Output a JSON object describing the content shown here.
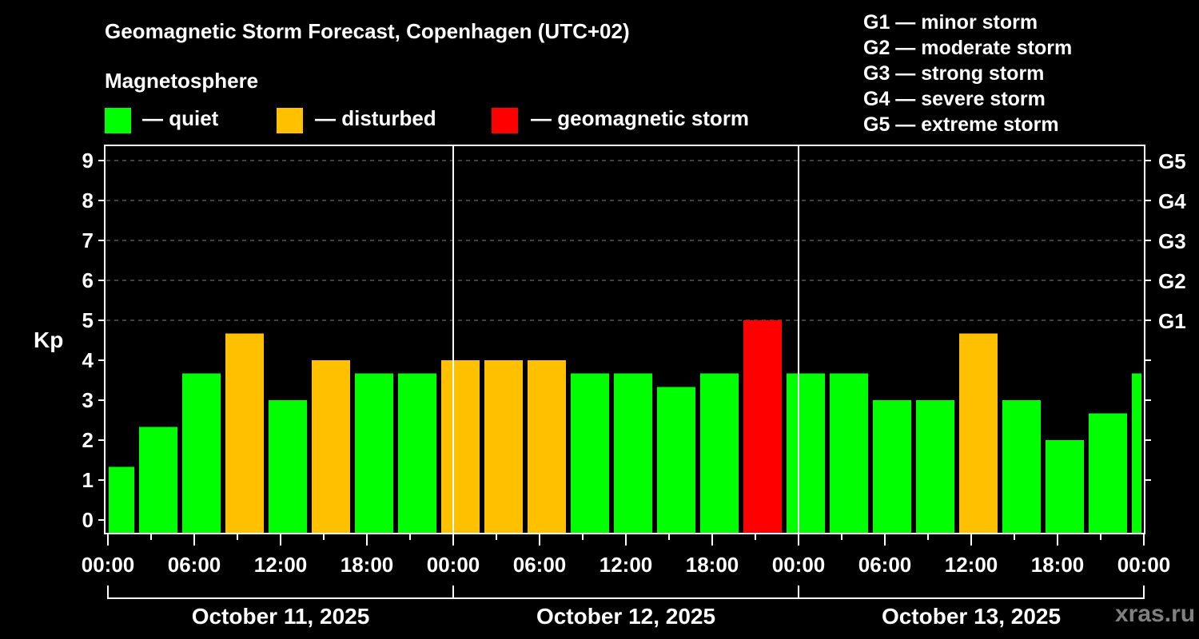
{
  "title": "Geomagnetic Storm Forecast, Copenhagen (UTC+02)",
  "magnetosphere_label": "Magnetosphere",
  "legend": [
    {
      "label": "— quiet",
      "color": "#00ff00"
    },
    {
      "label": "— disturbed",
      "color": "#ffc000"
    },
    {
      "label": "— geomagnetic storm",
      "color": "#ff0000"
    }
  ],
  "storm_scale": [
    "G1 — minor storm",
    "G2 — moderate storm",
    "G3 — strong storm",
    "G4 — severe storm",
    "G5 — extreme storm"
  ],
  "watermark": "xras.ru",
  "chart_data": {
    "type": "bar",
    "title": "Geomagnetic Storm Forecast, Copenhagen (UTC+02)",
    "ylabel": "Kp",
    "ylim": [
      0,
      9
    ],
    "yticks": [
      "0",
      "1",
      "2",
      "3",
      "4",
      "5",
      "6",
      "7",
      "8",
      "9"
    ],
    "right_ticks": [
      {
        "kp": 5,
        "label": "G1"
      },
      {
        "kp": 6,
        "label": "G2"
      },
      {
        "kp": 7,
        "label": "G3"
      },
      {
        "kp": 8,
        "label": "G4"
      },
      {
        "kp": 9,
        "label": "G5"
      }
    ],
    "grid": "dashed horizontal at Kp 5-9",
    "xlim_hours": [
      0,
      72
    ],
    "xtick_labels": [
      "00:00",
      "06:00",
      "12:00",
      "18:00",
      "00:00",
      "06:00",
      "12:00",
      "18:00",
      "00:00",
      "06:00",
      "12:00",
      "18:00",
      "00:00"
    ],
    "days": [
      "October 11, 2025",
      "October 12, 2025",
      "October 13, 2025"
    ],
    "colors": {
      "quiet": "#00ff00",
      "disturbed": "#ffc000",
      "storm": "#ff0000"
    },
    "bars": [
      {
        "start_hour": -1,
        "end_hour": 2,
        "kp": 1.33,
        "level": "quiet"
      },
      {
        "start_hour": 2,
        "end_hour": 5,
        "kp": 2.33,
        "level": "quiet"
      },
      {
        "start_hour": 5,
        "end_hour": 8,
        "kp": 3.67,
        "level": "quiet"
      },
      {
        "start_hour": 8,
        "end_hour": 11,
        "kp": 4.67,
        "level": "disturbed"
      },
      {
        "start_hour": 11,
        "end_hour": 14,
        "kp": 3.0,
        "level": "quiet"
      },
      {
        "start_hour": 14,
        "end_hour": 17,
        "kp": 4.0,
        "level": "disturbed"
      },
      {
        "start_hour": 17,
        "end_hour": 20,
        "kp": 3.67,
        "level": "quiet"
      },
      {
        "start_hour": 20,
        "end_hour": 23,
        "kp": 3.67,
        "level": "quiet"
      },
      {
        "start_hour": 23,
        "end_hour": 26,
        "kp": 4.0,
        "level": "disturbed"
      },
      {
        "start_hour": 26,
        "end_hour": 29,
        "kp": 4.0,
        "level": "disturbed"
      },
      {
        "start_hour": 29,
        "end_hour": 32,
        "kp": 4.0,
        "level": "disturbed"
      },
      {
        "start_hour": 32,
        "end_hour": 35,
        "kp": 3.67,
        "level": "quiet"
      },
      {
        "start_hour": 35,
        "end_hour": 38,
        "kp": 3.67,
        "level": "quiet"
      },
      {
        "start_hour": 38,
        "end_hour": 41,
        "kp": 3.33,
        "level": "quiet"
      },
      {
        "start_hour": 41,
        "end_hour": 44,
        "kp": 3.67,
        "level": "quiet"
      },
      {
        "start_hour": 44,
        "end_hour": 47,
        "kp": 5.0,
        "level": "storm"
      },
      {
        "start_hour": 47,
        "end_hour": 50,
        "kp": 3.67,
        "level": "quiet"
      },
      {
        "start_hour": 50,
        "end_hour": 53,
        "kp": 3.67,
        "level": "quiet"
      },
      {
        "start_hour": 53,
        "end_hour": 56,
        "kp": 3.0,
        "level": "quiet"
      },
      {
        "start_hour": 56,
        "end_hour": 59,
        "kp": 3.0,
        "level": "quiet"
      },
      {
        "start_hour": 59,
        "end_hour": 62,
        "kp": 4.67,
        "level": "disturbed"
      },
      {
        "start_hour": 62,
        "end_hour": 65,
        "kp": 3.0,
        "level": "quiet"
      },
      {
        "start_hour": 65,
        "end_hour": 68,
        "kp": 2.0,
        "level": "quiet"
      },
      {
        "start_hour": 68,
        "end_hour": 71,
        "kp": 2.67,
        "level": "quiet"
      },
      {
        "start_hour": 71,
        "end_hour": 74,
        "kp": 3.67,
        "level": "quiet"
      }
    ]
  }
}
